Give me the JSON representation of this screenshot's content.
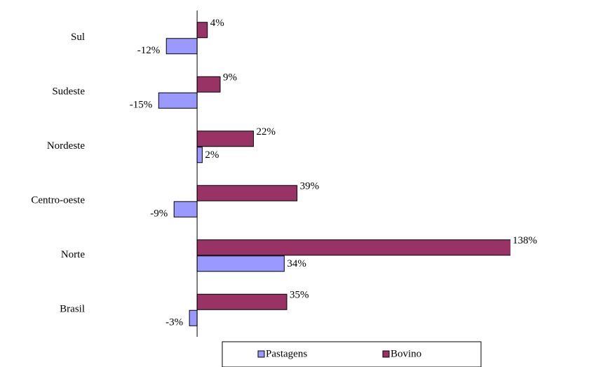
{
  "chart_data": {
    "type": "bar",
    "orientation": "horizontal",
    "categories": [
      "Sul",
      "Sudeste",
      "Nordeste",
      "Centro-oeste",
      "Norte",
      "Brasil"
    ],
    "series": [
      {
        "name": "Pastagens",
        "color": "#9999ff",
        "values": [
          -12,
          -15,
          2,
          -9,
          34,
          -3
        ],
        "value_labels": [
          "-12%",
          "-15%",
          "2%",
          "-9%",
          "34%",
          "-3%"
        ]
      },
      {
        "name": "Bovino",
        "color": "#993366",
        "values": [
          4,
          9,
          22,
          39,
          138,
          35
        ],
        "value_labels": [
          "4%",
          "9%",
          "22%",
          "39%",
          "138%",
          "35%"
        ]
      }
    ],
    "xlim": [
      -20,
      122
    ],
    "legend": "bottom"
  }
}
